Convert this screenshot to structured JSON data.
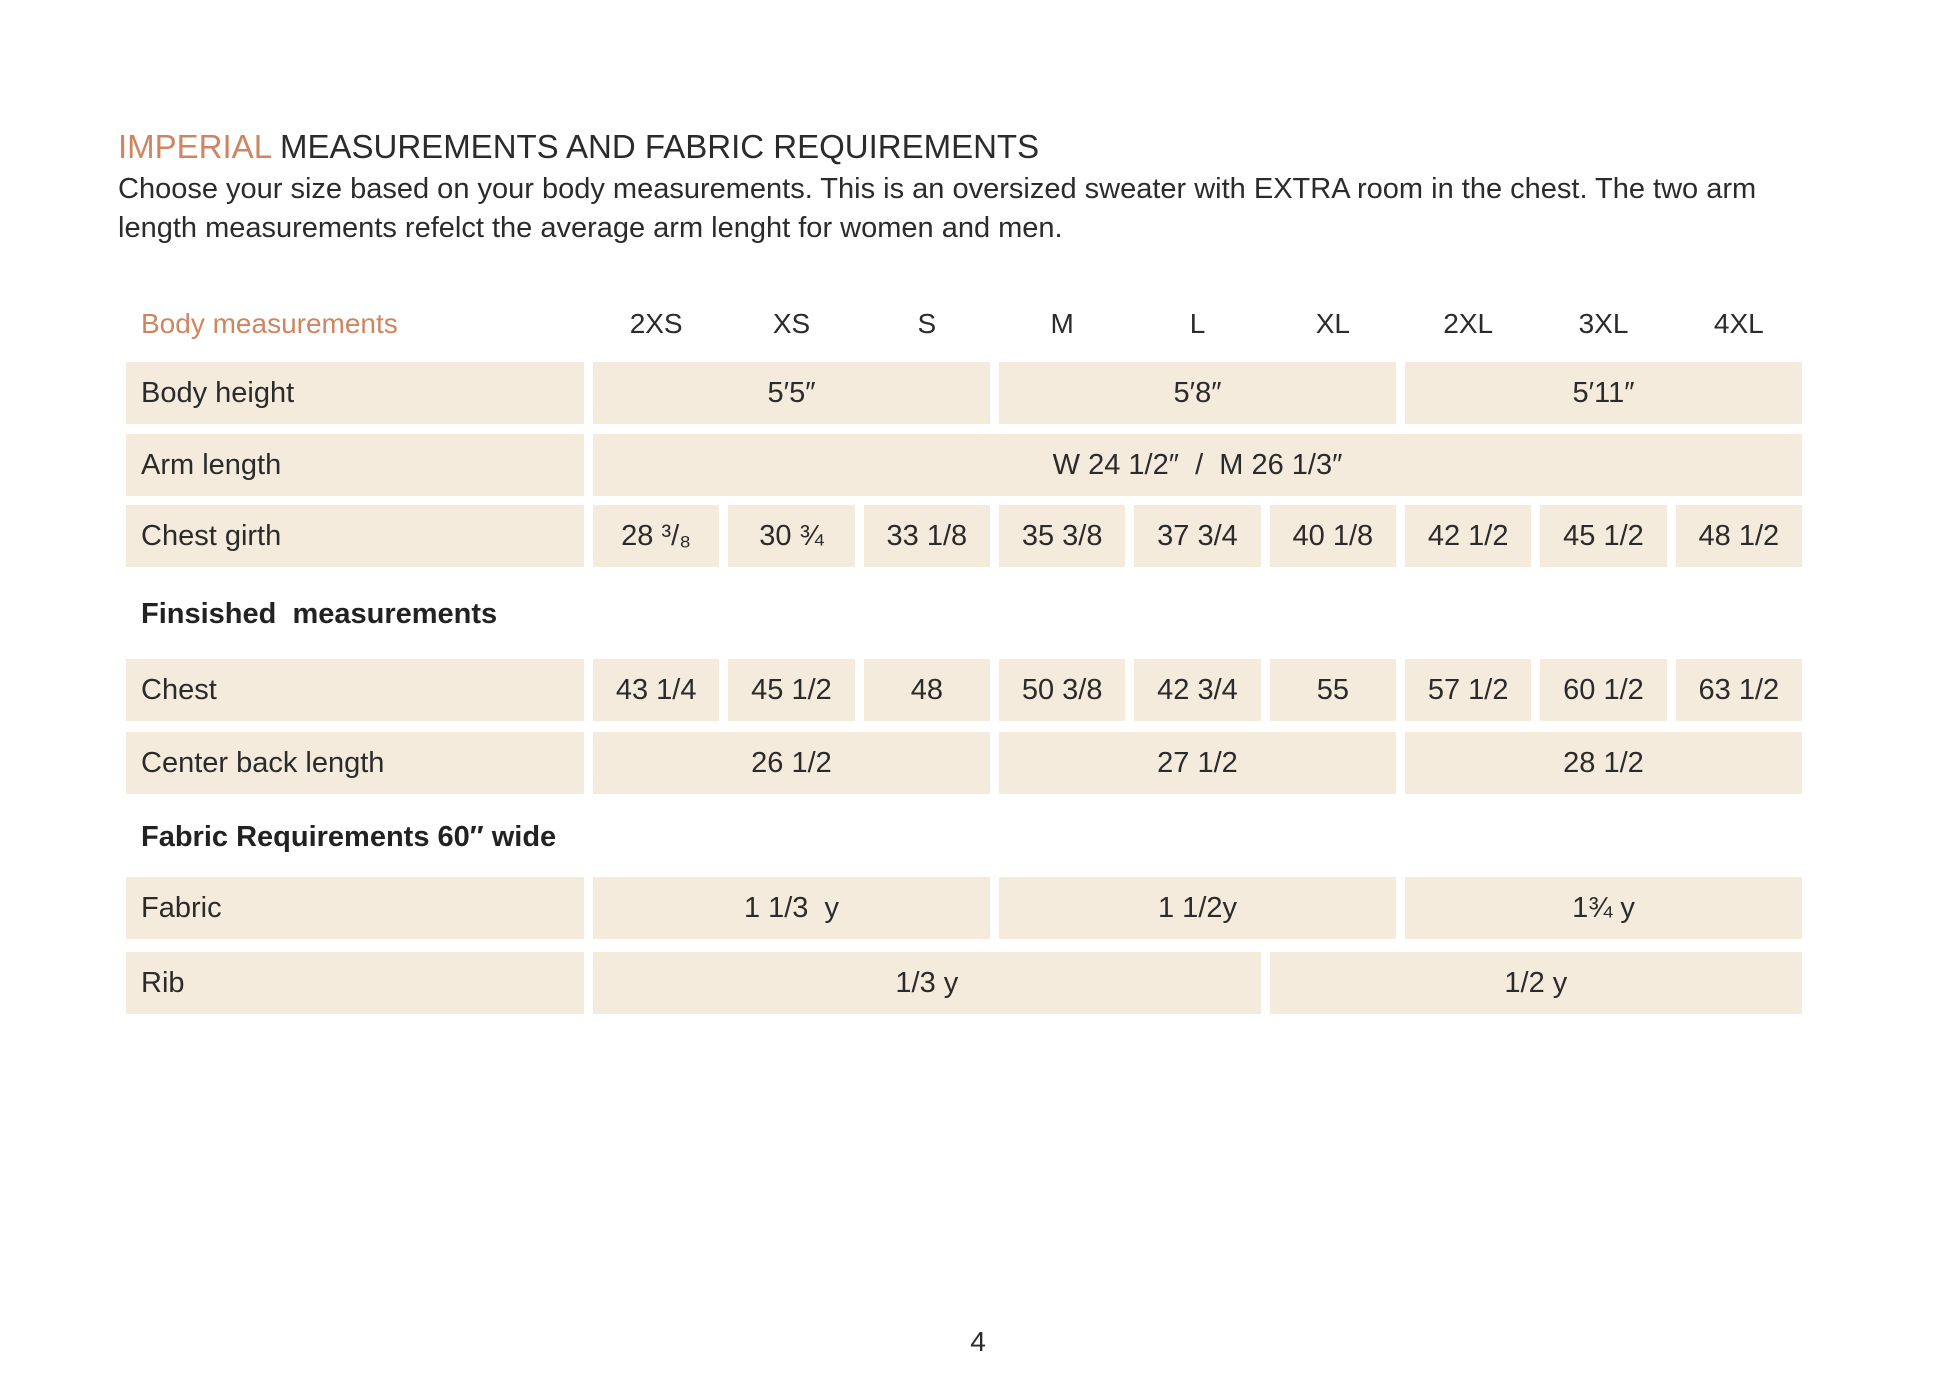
{
  "header": {
    "title_highlight": "IMPERIAL",
    "title": "MEASUREMENTS AND FABRIC REQUIREMENTS",
    "intro": "Choose your size based on your body measurements. This is an oversized sweater with EXTRA room in the chest. The two arm length measurements refelct the average arm lenght for women and men."
  },
  "table": {
    "size_header": {
      "label": "Body measurements",
      "sizes": [
        "2XS",
        "XS",
        "S",
        "M",
        "L",
        "XL",
        "2XL",
        "3XL",
        "4XL"
      ]
    },
    "body_rows": [
      {
        "label": "Body height",
        "cells": [
          "5′5″",
          "5′8″",
          "5′11″"
        ]
      },
      {
        "label": "Arm length",
        "cells": [
          "W 24 1/2″  /  M 26 1/3″"
        ]
      },
      {
        "label": "Chest girth",
        "cells": [
          "28 ³/₈",
          "30 ¾",
          "33 1/8",
          "35 3/8",
          "37 3/4",
          "40 1/8",
          "42 1/2",
          "45 1/2",
          "48 1/2"
        ]
      }
    ],
    "finished": {
      "heading": "Finsished  measurements",
      "rows": [
        {
          "label": "Chest",
          "cells": [
            "43 1/4",
            "45 1/2",
            "48",
            "50 3/8",
            "42 3/4",
            "55",
            "57 1/2",
            "60 1/2",
            "63 1/2"
          ]
        },
        {
          "label": "Center back length",
          "cells": [
            "26 1/2",
            "27 1/2",
            "28 1/2"
          ]
        }
      ]
    },
    "fabric": {
      "heading": "Fabric Requirements 60″ wide",
      "rows": [
        {
          "label": "Fabric",
          "cells": [
            "1 1/3  y",
            "1 1/2y",
            "1¾ y"
          ]
        },
        {
          "label": "Rib",
          "cells": [
            "1/3 y",
            "1/2 y"
          ]
        }
      ]
    }
  },
  "page_number": "4"
}
